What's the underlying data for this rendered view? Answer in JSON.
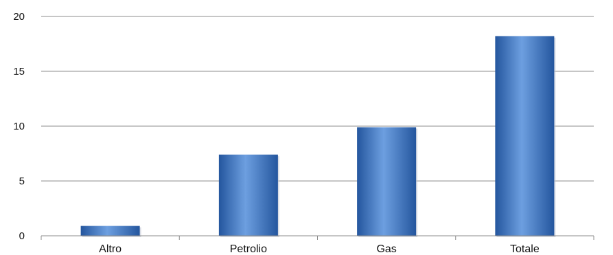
{
  "chart_data": {
    "type": "bar",
    "categories": [
      "Altro",
      "Petrolio",
      "Gas",
      "Totale"
    ],
    "values": [
      0.9,
      7.4,
      9.9,
      18.2
    ],
    "ylim": [
      0,
      20
    ],
    "yticks": [
      "0",
      "5",
      "10",
      "15",
      "20"
    ],
    "title": "",
    "xlabel": "",
    "ylabel": "",
    "grid": true,
    "bar_color": "#3a74c9",
    "bar_color_dark": "#24569e",
    "bar_color_light": "#6d9fe0",
    "grid_color": "#8c8c8c"
  }
}
